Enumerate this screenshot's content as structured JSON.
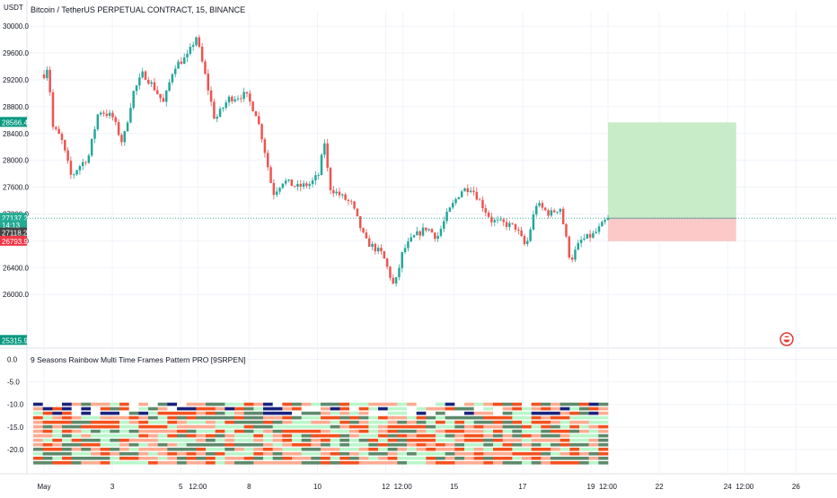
{
  "chart_data": [
    {
      "type": "candlestick",
      "title": "Bitcoin / TetherUS PERPETUAL CONTRACT, 15, BINANCE",
      "axis_unit": "USDT",
      "ylim": [
        25200,
        30150
      ],
      "y_ticks": [
        "30000.0",
        "29600.0",
        "29200.0",
        "28800.0",
        "28400.0",
        "28000.0",
        "27600.0",
        "27200.0",
        "26800.0",
        "26400.0",
        "26000.0"
      ],
      "x_ticks": [
        "May",
        "3",
        "5",
        "12:00",
        "8",
        "10",
        "12",
        "12:00",
        "15",
        "17",
        "19",
        "12:00",
        "22",
        "24",
        "12:00",
        "26"
      ],
      "x_tick_times": [
        0,
        2,
        4,
        4.5,
        6,
        8,
        10,
        10.5,
        12,
        14,
        16,
        16.5,
        18,
        20,
        20.5,
        22
      ],
      "xlim": [
        -0.5,
        23.2
      ],
      "last_bar_time": 16.5,
      "price_path": [
        [
          0,
          29280
        ],
        [
          0.12,
          29420
        ],
        [
          0.25,
          28500
        ],
        [
          0.5,
          28330
        ],
        [
          0.8,
          27750
        ],
        [
          1.0,
          27900
        ],
        [
          1.3,
          28050
        ],
        [
          1.6,
          28750
        ],
        [
          2.0,
          28650
        ],
        [
          2.3,
          28250
        ],
        [
          2.6,
          29000
        ],
        [
          2.9,
          29300
        ],
        [
          3.2,
          29100
        ],
        [
          3.5,
          28850
        ],
        [
          3.8,
          29400
        ],
        [
          4.2,
          29550
        ],
        [
          4.45,
          29850
        ],
        [
          4.7,
          29300
        ],
        [
          5.0,
          28600
        ],
        [
          5.4,
          28920
        ],
        [
          5.9,
          28980
        ],
        [
          6.2,
          28700
        ],
        [
          6.4,
          28300
        ],
        [
          6.7,
          27500
        ],
        [
          7.0,
          27700
        ],
        [
          7.4,
          27600
        ],
        [
          7.8,
          27650
        ],
        [
          8.05,
          27800
        ],
        [
          8.2,
          28300
        ],
        [
          8.35,
          27600
        ],
        [
          8.6,
          27500
        ],
        [
          9.0,
          27350
        ],
        [
          9.4,
          26800
        ],
        [
          9.9,
          26600
        ],
        [
          10.25,
          26100
        ],
        [
          10.5,
          26650
        ],
        [
          10.8,
          26850
        ],
        [
          11.2,
          27000
        ],
        [
          11.5,
          26850
        ],
        [
          11.8,
          27200
        ],
        [
          12.2,
          27550
        ],
        [
          12.5,
          27600
        ],
        [
          12.8,
          27350
        ],
        [
          13.1,
          27100
        ],
        [
          13.5,
          27050
        ],
        [
          13.8,
          27000
        ],
        [
          14.1,
          26700
        ],
        [
          14.4,
          27350
        ],
        [
          14.8,
          27200
        ],
        [
          15.1,
          27300
        ],
        [
          15.4,
          26500
        ],
        [
          15.7,
          26800
        ],
        [
          16.1,
          26900
        ],
        [
          16.5,
          27137
        ]
      ],
      "candle_count": 190,
      "last_price": 27137.2,
      "price_labels": [
        {
          "text": "28566.4",
          "price": 28566.4,
          "color": "#089981"
        },
        {
          "text": "27137.2",
          "price": 27137.2,
          "color": "#22ab94"
        },
        {
          "text": "14:13",
          "price": 27030,
          "color": "#22ab94"
        },
        {
          "text": "27118.2",
          "price": 26918.2,
          "color": "#444444"
        },
        {
          "text": "26793.9",
          "price": 26793.9,
          "color": "#f23645"
        },
        {
          "text": "25315.9",
          "price": 25315.9,
          "color": "#089981"
        }
      ],
      "position_tool": {
        "entry": 27137.2,
        "target": 28566.4,
        "stop": 26793.9,
        "start_time": 16.5,
        "end_time": 20.25,
        "profit_color": "#c8ebc8",
        "loss_color": "#fcc8c8"
      },
      "candle_colors": {
        "up": "#26a69a",
        "down": "#ef5350"
      }
    },
    {
      "type": "heatmap",
      "title": "9 Seasons Rainbow Multi Time Frames Pattern PRO [9SRPEN]",
      "ylim": [
        -24.2,
        1.5
      ],
      "y_ticks": [
        "0.0",
        "-5.0",
        "-10.0",
        "-15.0",
        "-20.0"
      ],
      "rows": [
        -10,
        -11,
        -12,
        -13,
        -14,
        -15,
        -16,
        -17,
        -18,
        -19,
        -20,
        -21,
        -22,
        -23
      ],
      "row_colors": [
        "#f4511e",
        "#5d8a6c",
        "#b9f6ca",
        "#ffab91",
        "#1a237e",
        "#ffffff"
      ],
      "segment_count": 60
    }
  ]
}
